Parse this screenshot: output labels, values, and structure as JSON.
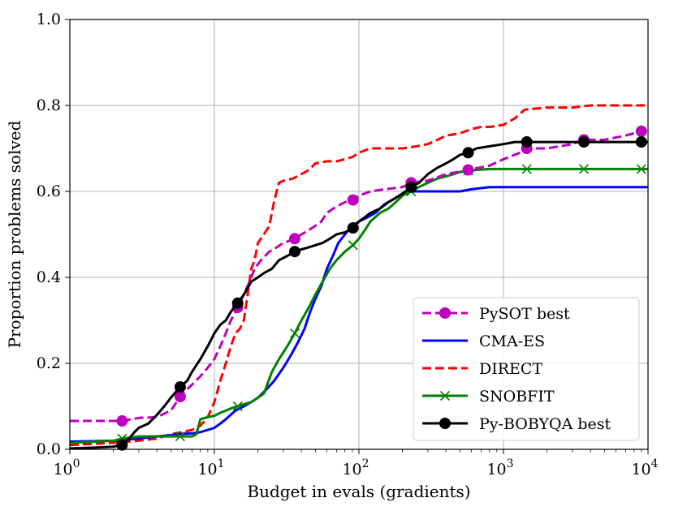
{
  "chart_data": {
    "type": "line",
    "title": "",
    "xlabel": "Budget in evals (gradients)",
    "ylabel": "Proportion problems solved",
    "xscale": "log",
    "xlim": [
      1,
      10000
    ],
    "ylim": [
      0.0,
      1.0
    ],
    "grid": true,
    "legend_position": "lower-right",
    "x_ticks": [
      {
        "value": 1,
        "base": "10",
        "exp": "0"
      },
      {
        "value": 10,
        "base": "10",
        "exp": "1"
      },
      {
        "value": 100,
        "base": "10",
        "exp": "2"
      },
      {
        "value": 1000,
        "base": "10",
        "exp": "3"
      },
      {
        "value": 10000,
        "base": "10",
        "exp": "4"
      }
    ],
    "y_ticks": [
      {
        "value": 0.0,
        "label": "0.0"
      },
      {
        "value": 0.2,
        "label": "0.2"
      },
      {
        "value": 0.4,
        "label": "0.4"
      },
      {
        "value": 0.6,
        "label": "0.6"
      },
      {
        "value": 0.8,
        "label": "0.8"
      },
      {
        "value": 1.0,
        "label": "1.0"
      }
    ],
    "series": [
      {
        "name": "PySOT best",
        "color": "#bf00bf",
        "dash": "dashed",
        "marker": "circle",
        "x": [
          1,
          2.3,
          3,
          4,
          5,
          6,
          7,
          8,
          9,
          10,
          11,
          12,
          13,
          14,
          15,
          17,
          19,
          21,
          24,
          27,
          30,
          33,
          36,
          40,
          45,
          50,
          55,
          60,
          70,
          80,
          91,
          100,
          120,
          150,
          200,
          230,
          300,
          400,
          570,
          800,
          1000,
          1300,
          1450,
          2000,
          3000,
          3600,
          5000,
          7000,
          9000,
          10000
        ],
        "y": [
          0.066,
          0.066,
          0.073,
          0.075,
          0.09,
          0.13,
          0.15,
          0.17,
          0.19,
          0.21,
          0.24,
          0.27,
          0.3,
          0.32,
          0.34,
          0.38,
          0.42,
          0.44,
          0.46,
          0.47,
          0.48,
          0.485,
          0.49,
          0.5,
          0.51,
          0.52,
          0.53,
          0.55,
          0.565,
          0.575,
          0.58,
          0.59,
          0.6,
          0.605,
          0.61,
          0.62,
          0.625,
          0.64,
          0.65,
          0.66,
          0.675,
          0.69,
          0.7,
          0.7,
          0.71,
          0.72,
          0.72,
          0.73,
          0.74,
          0.74
        ],
        "marker_x": [
          2.3,
          5.8,
          14.5,
          36,
          91,
          230,
          570,
          1450,
          3600,
          9000
        ]
      },
      {
        "name": "CMA-ES",
        "color": "#0000ff",
        "dash": "solid",
        "marker": "none",
        "x": [
          1,
          2,
          3,
          4,
          5,
          6,
          7,
          8,
          9,
          10,
          11,
          12,
          14,
          16,
          18,
          20,
          23,
          26,
          30,
          34,
          38,
          42,
          46,
          50,
          55,
          60,
          66,
          72,
          80,
          90,
          100,
          115,
          130,
          150,
          170,
          200,
          230,
          300,
          400,
          500,
          600,
          800,
          1000,
          2000,
          5000,
          10000
        ],
        "y": [
          0.018,
          0.02,
          0.025,
          0.03,
          0.033,
          0.036,
          0.037,
          0.04,
          0.045,
          0.05,
          0.06,
          0.07,
          0.09,
          0.1,
          0.11,
          0.12,
          0.14,
          0.16,
          0.19,
          0.22,
          0.25,
          0.28,
          0.32,
          0.35,
          0.38,
          0.42,
          0.45,
          0.48,
          0.5,
          0.52,
          0.53,
          0.54,
          0.55,
          0.57,
          0.58,
          0.595,
          0.6,
          0.6,
          0.6,
          0.6,
          0.605,
          0.61,
          0.61,
          0.61,
          0.61,
          0.61
        ]
      },
      {
        "name": "DIRECT",
        "color": "#ff0000",
        "dash": "dashed",
        "marker": "none",
        "x": [
          1,
          2,
          3,
          4,
          5,
          6,
          7,
          8,
          9,
          10,
          11,
          12,
          13,
          14,
          15,
          16,
          17,
          18,
          19,
          20,
          22,
          24,
          26,
          28,
          30,
          35,
          40,
          45,
          50,
          60,
          70,
          80,
          90,
          100,
          120,
          150,
          200,
          250,
          300,
          350,
          400,
          500,
          600,
          700,
          800,
          1000,
          1200,
          1400,
          2000,
          3000,
          4000,
          5000,
          7000,
          10000
        ],
        "y": [
          0.01,
          0.015,
          0.02,
          0.025,
          0.035,
          0.04,
          0.045,
          0.055,
          0.075,
          0.11,
          0.16,
          0.2,
          0.24,
          0.27,
          0.28,
          0.3,
          0.36,
          0.42,
          0.44,
          0.48,
          0.5,
          0.52,
          0.58,
          0.62,
          0.625,
          0.63,
          0.64,
          0.65,
          0.665,
          0.67,
          0.67,
          0.675,
          0.68,
          0.69,
          0.7,
          0.7,
          0.7,
          0.705,
          0.71,
          0.72,
          0.73,
          0.735,
          0.745,
          0.75,
          0.75,
          0.755,
          0.77,
          0.79,
          0.795,
          0.795,
          0.8,
          0.8,
          0.8,
          0.8
        ]
      },
      {
        "name": "SNOBFIT",
        "color": "#008000",
        "dash": "solid",
        "marker": "x",
        "x": [
          1,
          2,
          2.3,
          3,
          4,
          5,
          5.8,
          7,
          7.5,
          8,
          9,
          10,
          11,
          12,
          13,
          14.5,
          16,
          18,
          20,
          22,
          25,
          28,
          32,
          36,
          40,
          45,
          50,
          56,
          63,
          70,
          80,
          91,
          100,
          110,
          120,
          140,
          160,
          180,
          200,
          230,
          260,
          300,
          350,
          400,
          450,
          500,
          570,
          650,
          800,
          1000,
          1450,
          2000,
          3600,
          5000,
          9000,
          10000
        ],
        "y": [
          0.015,
          0.02,
          0.025,
          0.03,
          0.03,
          0.03,
          0.03,
          0.03,
          0.035,
          0.07,
          0.075,
          0.078,
          0.085,
          0.09,
          0.095,
          0.1,
          0.105,
          0.11,
          0.12,
          0.13,
          0.18,
          0.21,
          0.24,
          0.27,
          0.3,
          0.33,
          0.36,
          0.39,
          0.42,
          0.44,
          0.46,
          0.475,
          0.49,
          0.51,
          0.53,
          0.55,
          0.56,
          0.575,
          0.59,
          0.6,
          0.61,
          0.62,
          0.63,
          0.635,
          0.64,
          0.645,
          0.648,
          0.65,
          0.652,
          0.652,
          0.652,
          0.652,
          0.652,
          0.652,
          0.652,
          0.652
        ],
        "marker_x": [
          2.3,
          5.8,
          14.5,
          36,
          91,
          230,
          570,
          1450,
          3600,
          9000
        ]
      },
      {
        "name": "Py-BOBYQA best",
        "color": "#000000",
        "dash": "solid",
        "marker": "circle",
        "x": [
          1,
          1.5,
          2,
          2.3,
          2.5,
          2.8,
          3,
          3.5,
          4,
          4.5,
          5,
          5.8,
          6.5,
          7,
          8,
          9,
          10,
          11,
          12,
          13,
          14.5,
          16,
          18,
          20,
          22,
          25,
          28,
          32,
          36,
          40,
          45,
          50,
          56,
          63,
          70,
          80,
          91,
          100,
          110,
          120,
          140,
          160,
          180,
          200,
          230,
          260,
          300,
          350,
          400,
          450,
          500,
          570,
          650,
          800,
          1000,
          1200,
          1450,
          2000,
          3000,
          3600,
          5000,
          9000,
          10000
        ],
        "y": [
          0.002,
          0.004,
          0.006,
          0.01,
          0.02,
          0.04,
          0.05,
          0.06,
          0.08,
          0.1,
          0.12,
          0.145,
          0.16,
          0.18,
          0.21,
          0.24,
          0.27,
          0.29,
          0.3,
          0.32,
          0.34,
          0.36,
          0.39,
          0.4,
          0.41,
          0.42,
          0.44,
          0.45,
          0.46,
          0.465,
          0.47,
          0.475,
          0.48,
          0.49,
          0.5,
          0.505,
          0.515,
          0.53,
          0.54,
          0.55,
          0.56,
          0.575,
          0.585,
          0.595,
          0.61,
          0.62,
          0.64,
          0.655,
          0.665,
          0.675,
          0.685,
          0.69,
          0.7,
          0.705,
          0.71,
          0.715,
          0.715,
          0.715,
          0.715,
          0.715,
          0.715,
          0.715,
          0.715
        ],
        "marker_x": [
          2.3,
          5.8,
          14.5,
          36,
          91,
          230,
          570,
          1450,
          3600,
          9000
        ]
      }
    ]
  }
}
